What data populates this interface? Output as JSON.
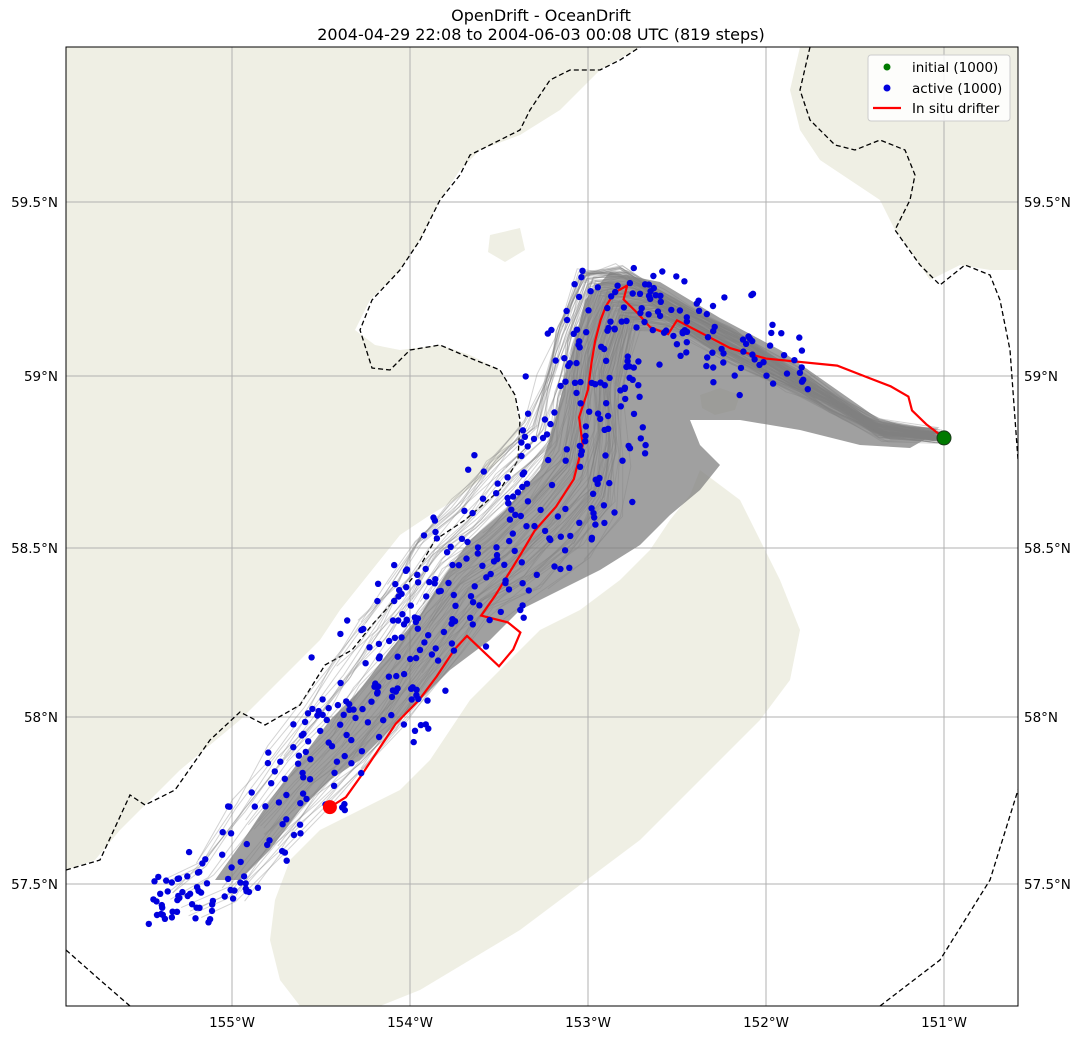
{
  "title": {
    "line1": "OpenDrift - OceanDrift",
    "line2": "2004-04-29 22:08 to 2004-06-03 00:08 UTC (819 steps)"
  },
  "colors": {
    "land": "#efefe4",
    "ocean": "#ffffff",
    "trajectory": "#808080",
    "initial": "#007a00",
    "active": "#0000dd",
    "drifter": "#ff0000",
    "grid": "#b0b0b0",
    "boundary": "#000000"
  },
  "axes": {
    "lon_labels": [
      "155°W",
      "154°W",
      "153°W",
      "152°W",
      "151°W"
    ],
    "lat_labels_left": [
      "59.5°N",
      "59°N",
      "58.5°N",
      "58°N",
      "57.5°N"
    ],
    "lat_labels_right": [
      "59.5°N",
      "59°N",
      "58.5°N",
      "58°N",
      "57.5°N"
    ]
  },
  "legend": {
    "placement": "top-right",
    "entries": [
      {
        "label": "initial (1000)",
        "marker": "dot",
        "color_key": "initial"
      },
      {
        "label": "active (1000)",
        "marker": "dot",
        "color_key": "active"
      },
      {
        "label": "In situ drifter",
        "marker": "line",
        "color_key": "drifter"
      }
    ]
  },
  "map": {
    "lon_range": [
      -155.93,
      -150.4
    ],
    "lat_range": [
      57.14,
      59.96
    ],
    "grid": true,
    "start_point": {
      "lon": -151.0,
      "lat": 58.82
    },
    "drifter_end": {
      "lon": -154.45,
      "lat": 57.73
    },
    "drifter_track": [
      [
        -151.0,
        58.82
      ],
      [
        -151.1,
        58.86
      ],
      [
        -151.18,
        58.9
      ],
      [
        -151.2,
        58.94
      ],
      [
        -151.3,
        58.97
      ],
      [
        -151.45,
        59.0
      ],
      [
        -151.6,
        59.03
      ],
      [
        -152.0,
        59.05
      ],
      [
        -152.2,
        59.08
      ],
      [
        -152.35,
        59.12
      ],
      [
        -152.5,
        59.16
      ],
      [
        -152.55,
        59.12
      ],
      [
        -152.65,
        59.14
      ],
      [
        -152.72,
        59.18
      ],
      [
        -152.8,
        59.22
      ],
      [
        -152.78,
        59.26
      ],
      [
        -152.85,
        59.24
      ],
      [
        -152.9,
        59.2
      ],
      [
        -152.93,
        59.16
      ],
      [
        -152.96,
        59.1
      ],
      [
        -152.98,
        59.04
      ],
      [
        -153.0,
        58.96
      ],
      [
        -153.05,
        58.88
      ],
      [
        -153.03,
        58.8
      ],
      [
        -153.08,
        58.7
      ],
      [
        -153.18,
        58.62
      ],
      [
        -153.3,
        58.55
      ],
      [
        -153.38,
        58.48
      ],
      [
        -153.45,
        58.42
      ],
      [
        -153.52,
        58.36
      ],
      [
        -153.6,
        58.3
      ],
      [
        -153.45,
        58.28
      ],
      [
        -153.38,
        58.25
      ],
      [
        -153.42,
        58.2
      ],
      [
        -153.5,
        58.15
      ],
      [
        -153.6,
        58.2
      ],
      [
        -153.68,
        58.24
      ],
      [
        -153.75,
        58.2
      ],
      [
        -153.85,
        58.12
      ],
      [
        -153.95,
        58.05
      ],
      [
        -154.08,
        57.98
      ],
      [
        -154.18,
        57.9
      ],
      [
        -154.28,
        57.82
      ],
      [
        -154.36,
        57.76
      ],
      [
        -154.45,
        57.73
      ]
    ]
  }
}
